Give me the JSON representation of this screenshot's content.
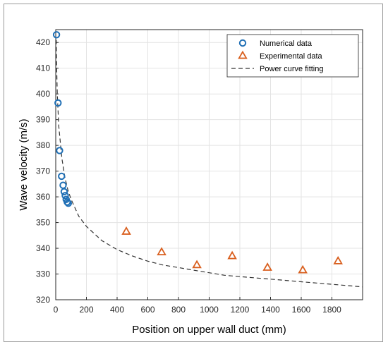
{
  "chart_data": {
    "type": "scatter",
    "xlabel": "Position on upper wall duct   (mm)",
    "ylabel": "Wave velocity    (m/s)",
    "xlim": [
      0,
      2000
    ],
    "ylim": [
      320,
      425
    ],
    "x_ticks": [
      0,
      200,
      400,
      600,
      800,
      1000,
      1200,
      1400,
      1600,
      1800
    ],
    "y_ticks": [
      320,
      330,
      340,
      350,
      360,
      370,
      380,
      390,
      400,
      410,
      420
    ],
    "grid": true,
    "legend_position": "top-right",
    "series": [
      {
        "name": "Numerical data",
        "marker": "circle",
        "color": "#1f6fb5",
        "x": [
          5,
          15,
          25,
          38,
          48,
          55,
          62,
          68,
          75,
          82
        ],
        "y": [
          423,
          396.5,
          378,
          368,
          364.5,
          362,
          360.5,
          359,
          358,
          357.5
        ]
      },
      {
        "name": "Experimental data",
        "marker": "triangle",
        "color": "#d95f1e",
        "x": [
          460,
          690,
          920,
          1150,
          1380,
          1610,
          1840
        ],
        "y": [
          346.5,
          338.5,
          333.5,
          337,
          332.5,
          331.5,
          335
        ]
      },
      {
        "name": "Power curve fitting",
        "style": "dashed",
        "color": "#333333",
        "x": [
          3,
          5,
          10,
          20,
          40,
          60,
          80,
          100,
          150,
          200,
          300,
          400,
          500,
          600,
          700,
          800,
          900,
          1000,
          1100,
          1200,
          1300,
          1400,
          1500,
          1600,
          1700,
          1800,
          1900,
          2000
        ],
        "y": [
          421,
          412.5,
          400,
          387.5,
          375,
          367.5,
          362.5,
          359,
          352.5,
          348.5,
          343,
          339.5,
          337,
          335,
          333.5,
          332.5,
          331.5,
          330.5,
          329.5,
          329,
          328.5,
          328,
          327.5,
          327,
          326.5,
          326,
          325.5,
          325
        ]
      }
    ]
  }
}
